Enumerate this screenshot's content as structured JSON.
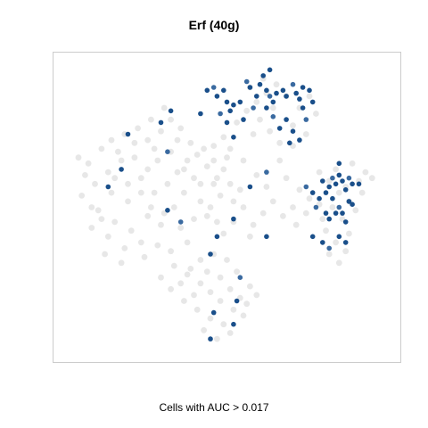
{
  "chart_data": {
    "type": "scatter",
    "title": "Erf (40g)",
    "xlabel": "Cells with AUC > 0.017",
    "ylabel": "",
    "axes_visible": false,
    "grid": false,
    "legend": "none",
    "x_range": [
      0,
      100
    ],
    "y_range": [
      0,
      100
    ],
    "colors": {
      "background_cells": "#e3e3e3",
      "active_cells": "#1a4f8a",
      "active_cells_light": "#3a6aa0",
      "frame": "#cccccc"
    },
    "series": [
      {
        "role": "background",
        "points": [
          [
            5,
            67
          ],
          [
            8,
            65
          ],
          [
            12,
            70
          ],
          [
            14,
            62
          ],
          [
            18,
            66
          ],
          [
            22,
            72
          ],
          [
            24,
            60
          ],
          [
            10,
            58
          ],
          [
            15,
            55
          ],
          [
            20,
            52
          ],
          [
            26,
            63
          ],
          [
            28,
            70
          ],
          [
            30,
            76
          ],
          [
            33,
            80
          ],
          [
            35,
            73
          ],
          [
            38,
            66
          ],
          [
            40,
            60
          ],
          [
            37,
            55
          ],
          [
            32,
            58
          ],
          [
            28,
            55
          ],
          [
            11,
            49
          ],
          [
            16,
            45
          ],
          [
            21,
            42
          ],
          [
            26,
            47
          ],
          [
            30,
            44
          ],
          [
            34,
            50
          ],
          [
            36,
            43
          ],
          [
            14,
            40
          ],
          [
            19,
            36
          ],
          [
            24,
            38
          ],
          [
            9,
            43
          ],
          [
            13,
            34
          ],
          [
            18,
            31
          ],
          [
            25,
            33
          ],
          [
            29,
            37
          ],
          [
            33,
            35
          ],
          [
            38,
            38
          ],
          [
            40,
            46
          ],
          [
            42,
            52
          ],
          [
            35,
            62
          ],
          [
            41,
            68
          ],
          [
            44,
            64
          ],
          [
            46,
            58
          ],
          [
            39,
            72
          ],
          [
            36,
            77
          ],
          [
            31,
            84
          ],
          [
            27,
            80
          ],
          [
            23,
            77
          ],
          [
            19,
            75
          ],
          [
            15,
            73
          ],
          [
            46,
            66
          ],
          [
            47,
            60
          ],
          [
            48,
            54
          ],
          [
            45,
            50
          ],
          [
            47,
            45
          ],
          [
            49,
            41
          ],
          [
            44,
            47
          ],
          [
            42,
            58
          ],
          [
            46,
            71
          ],
          [
            49,
            63
          ],
          [
            53,
            79
          ],
          [
            56,
            83
          ],
          [
            59,
            86
          ],
          [
            62,
            89
          ],
          [
            57,
            91
          ],
          [
            61,
            94
          ],
          [
            65,
            92
          ],
          [
            68,
            88
          ],
          [
            64,
            84
          ],
          [
            60,
            80
          ],
          [
            58,
            75
          ],
          [
            63,
            76
          ],
          [
            66,
            72
          ],
          [
            70,
            78
          ],
          [
            72,
            84
          ],
          [
            75,
            88
          ],
          [
            77,
            82
          ],
          [
            74,
            75
          ],
          [
            70,
            71
          ],
          [
            66,
            66
          ],
          [
            68,
            60
          ],
          [
            72,
            56
          ],
          [
            75,
            53
          ],
          [
            70,
            50
          ],
          [
            67,
            47
          ],
          [
            71,
            44
          ],
          [
            74,
            48
          ],
          [
            78,
            51
          ],
          [
            79,
            46
          ],
          [
            62,
            57
          ],
          [
            64,
            52
          ],
          [
            61,
            48
          ],
          [
            58,
            44
          ],
          [
            55,
            50
          ],
          [
            57,
            40
          ],
          [
            52,
            45
          ],
          [
            54,
            56
          ],
          [
            59,
            61
          ],
          [
            55,
            66
          ],
          [
            51,
            70
          ],
          [
            78,
            62
          ],
          [
            81,
            59
          ],
          [
            84,
            55
          ],
          [
            82,
            50
          ],
          [
            85,
            46
          ],
          [
            80,
            42
          ],
          [
            83,
            38
          ],
          [
            86,
            35
          ],
          [
            84,
            31
          ],
          [
            81,
            34
          ],
          [
            87,
            41
          ],
          [
            89,
            49
          ],
          [
            86,
            57
          ],
          [
            83,
            63
          ],
          [
            90,
            59
          ],
          [
            92,
            62
          ],
          [
            88,
            65
          ],
          [
            94,
            60
          ],
          [
            91,
            55
          ],
          [
            87,
            52
          ],
          [
            34,
            30
          ],
          [
            38,
            27
          ],
          [
            42,
            24
          ],
          [
            45,
            21
          ],
          [
            48,
            18
          ],
          [
            52,
            15
          ],
          [
            55,
            13
          ],
          [
            49,
            10
          ],
          [
            45,
            12
          ],
          [
            41,
            15
          ],
          [
            37,
            18
          ],
          [
            33,
            22
          ],
          [
            30,
            26
          ],
          [
            36,
            24
          ],
          [
            40,
            20
          ],
          [
            44,
            28
          ],
          [
            48,
            26
          ],
          [
            51,
            22
          ],
          [
            54,
            19
          ],
          [
            57,
            23
          ],
          [
            53,
            28
          ],
          [
            50,
            32
          ],
          [
            46,
            34
          ],
          [
            42,
            32
          ],
          [
            39,
            29
          ],
          [
            56,
            17
          ],
          [
            59,
            20
          ],
          [
            47,
            5
          ],
          [
            43,
            8
          ],
          [
            51,
            7
          ],
          [
            7,
            61
          ],
          [
            6,
            54
          ],
          [
            9,
            50
          ],
          [
            12,
            46
          ],
          [
            16,
            60
          ],
          [
            20,
            58
          ],
          [
            24,
            55
          ],
          [
            27,
            50
          ],
          [
            31,
            48
          ],
          [
            22,
            67
          ],
          [
            26,
            73
          ],
          [
            17,
            69
          ],
          [
            29,
            66
          ],
          [
            33,
            69
          ],
          [
            37,
            63
          ],
          [
            43,
            70
          ],
          [
            49,
            74
          ],
          [
            50,
            67
          ],
          [
            51,
            58
          ],
          [
            52,
            52
          ]
        ]
      },
      {
        "role": "active",
        "points": [
          [
            46,
            91
          ],
          [
            47,
            88
          ],
          [
            49,
            90
          ],
          [
            50,
            86
          ],
          [
            51,
            83
          ],
          [
            48,
            82
          ],
          [
            50,
            79
          ],
          [
            52,
            85
          ],
          [
            44,
            90
          ],
          [
            42,
            82
          ],
          [
            56,
            93
          ],
          [
            57,
            91
          ],
          [
            59,
            88
          ],
          [
            60,
            92
          ],
          [
            62,
            90
          ],
          [
            63,
            88
          ],
          [
            64,
            86
          ],
          [
            65,
            89
          ],
          [
            67,
            90
          ],
          [
            68,
            88
          ],
          [
            70,
            92
          ],
          [
            71,
            89
          ],
          [
            72,
            87
          ],
          [
            73,
            91
          ],
          [
            62,
            84
          ],
          [
            64,
            81
          ],
          [
            66,
            77
          ],
          [
            68,
            80
          ],
          [
            70,
            76
          ],
          [
            73,
            84
          ],
          [
            74,
            80
          ],
          [
            72,
            73
          ],
          [
            69,
            72
          ],
          [
            75,
            90
          ],
          [
            76,
            86
          ],
          [
            58,
            84
          ],
          [
            54,
            86
          ],
          [
            55,
            80
          ],
          [
            61,
            95
          ],
          [
            63,
            97
          ],
          [
            74,
            57
          ],
          [
            76,
            55
          ],
          [
            78,
            53
          ],
          [
            80,
            55
          ],
          [
            81,
            57
          ],
          [
            82,
            60
          ],
          [
            83,
            58
          ],
          [
            84,
            61
          ],
          [
            85,
            59
          ],
          [
            86,
            56
          ],
          [
            87,
            60
          ],
          [
            88,
            58
          ],
          [
            90,
            58
          ],
          [
            79,
            59
          ],
          [
            82,
            53
          ],
          [
            84,
            50
          ],
          [
            85,
            48
          ],
          [
            86,
            45
          ],
          [
            83,
            48
          ],
          [
            81,
            46
          ],
          [
            77,
            50
          ],
          [
            80,
            48
          ],
          [
            87,
            52
          ],
          [
            76,
            40
          ],
          [
            79,
            38
          ],
          [
            81,
            36
          ],
          [
            86,
            38
          ],
          [
            84,
            40
          ],
          [
            88,
            51
          ],
          [
            84,
            65
          ],
          [
            62,
            62
          ],
          [
            57,
            57
          ],
          [
            52,
            46
          ],
          [
            47,
            40
          ],
          [
            45,
            34
          ],
          [
            36,
            45
          ],
          [
            32,
            49
          ],
          [
            18,
            63
          ],
          [
            20,
            75
          ],
          [
            14,
            57
          ],
          [
            32,
            69
          ],
          [
            30,
            79
          ],
          [
            33,
            83
          ],
          [
            52,
            74
          ],
          [
            62,
            40
          ],
          [
            54,
            26
          ],
          [
            53,
            18
          ],
          [
            46,
            14
          ],
          [
            52,
            10
          ],
          [
            45,
            5
          ]
        ]
      }
    ]
  }
}
